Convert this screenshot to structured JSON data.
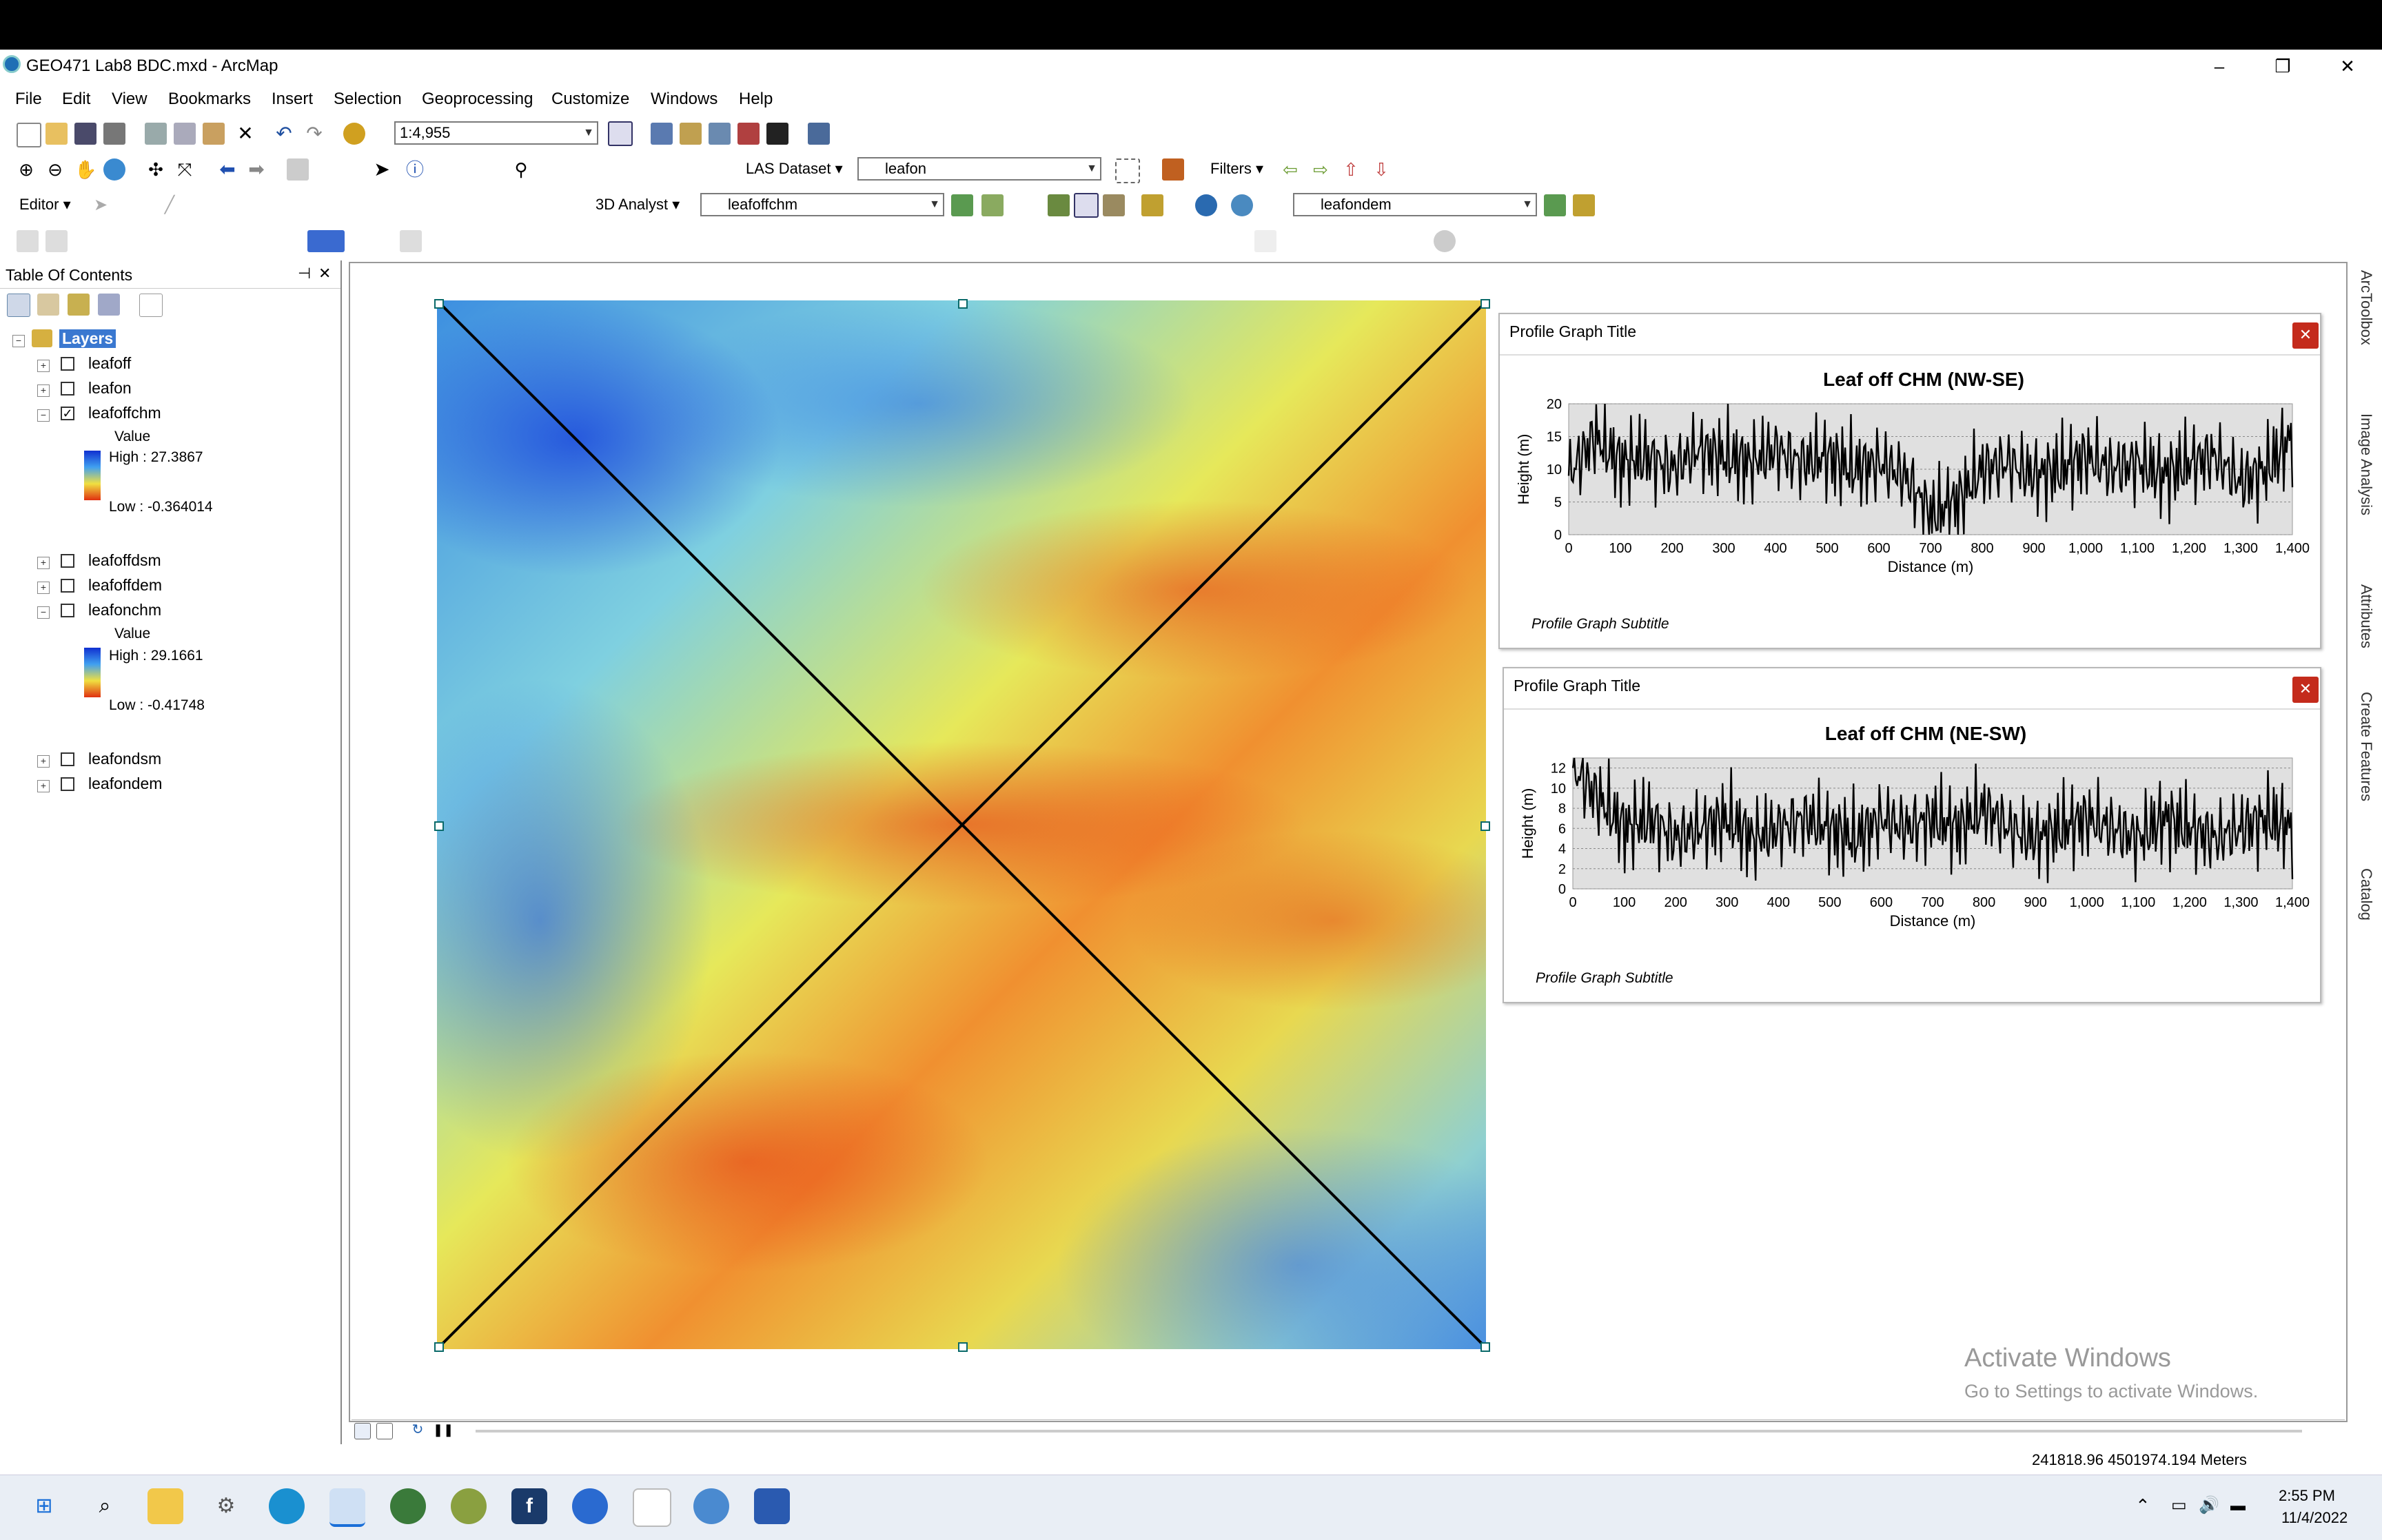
{
  "window": {
    "title": "GEO471 Lab8 BDC.mxd - ArcMap",
    "minimize": "–",
    "maximize": "❐",
    "close": "✕"
  },
  "menu": [
    "File",
    "Edit",
    "View",
    "Bookmarks",
    "Insert",
    "Selection",
    "Geoprocessing",
    "Customize",
    "Windows",
    "Help"
  ],
  "toolbar": {
    "scale": "1:4,955",
    "las_dataset_label": "LAS Dataset",
    "las_layer": "leafon",
    "filters_label": "Filters",
    "editor_label": "Editor",
    "analyst_label": "3D Analyst",
    "analyst_layer": "leafoffchm",
    "dem_layer": "leafondem"
  },
  "toc": {
    "header": "Table Of Contents",
    "pin": "⊣",
    "close": "✕",
    "root": "Layers",
    "layers": [
      {
        "name": "leafoff",
        "checked": false
      },
      {
        "name": "leafon",
        "checked": false
      },
      {
        "name": "leafoffchm",
        "checked": true,
        "legend_title": "Value",
        "high": "High : 27.3867",
        "low": "Low : -0.364014"
      },
      {
        "name": "leafoffdsm",
        "checked": false
      },
      {
        "name": "leafoffdem",
        "checked": false
      },
      {
        "name": "leafonchm",
        "checked": false,
        "legend_title": "Value",
        "high": "High : 29.1661",
        "low": "Low : -0.41748"
      },
      {
        "name": "leafondsm",
        "checked": false
      },
      {
        "name": "leafondem",
        "checked": false
      }
    ]
  },
  "graphs": [
    {
      "window_title": "Profile Graph Title",
      "subtitle": "Profile Graph Subtitle",
      "close": "✕",
      "chart_data": {
        "type": "line",
        "title": "Leaf off CHM (NW-SE)",
        "xlabel": "Distance (m)",
        "ylabel": "Height (m)",
        "xlim": [
          0,
          1400
        ],
        "ylim": [
          0,
          20
        ],
        "xticks": [
          "0",
          "100",
          "200",
          "300",
          "400",
          "500",
          "600",
          "700",
          "800",
          "900",
          "1,000",
          "1,100",
          "1,200",
          "1,300",
          "1,400"
        ],
        "yticks": [
          "0",
          "5",
          "10",
          "15",
          "20"
        ],
        "grid": true,
        "x": [
          0,
          50,
          100,
          150,
          200,
          250,
          300,
          350,
          400,
          450,
          500,
          550,
          600,
          650,
          700,
          750,
          800,
          850,
          900,
          950,
          1000,
          1050,
          1100,
          1150,
          1200,
          1250,
          1300,
          1350,
          1400
        ],
        "values": [
          9,
          15,
          11,
          12,
          10,
          13,
          12,
          11,
          13,
          11,
          12,
          10,
          11,
          9,
          3,
          5,
          10,
          11,
          9,
          10,
          12,
          10,
          11,
          9,
          11,
          12,
          8,
          10,
          15
        ]
      }
    },
    {
      "window_title": "Profile Graph Title",
      "subtitle": "Profile Graph Subtitle",
      "close": "✕",
      "chart_data": {
        "type": "line",
        "title": "Leaf off CHM (NE-SW)",
        "xlabel": "Distance (m)",
        "ylabel": "Height (m)",
        "xlim": [
          0,
          1400
        ],
        "ylim": [
          0,
          13
        ],
        "xticks": [
          "0",
          "100",
          "200",
          "300",
          "400",
          "500",
          "600",
          "700",
          "800",
          "900",
          "1,000",
          "1,100",
          "1,200",
          "1,300",
          "1,400"
        ],
        "yticks": [
          "0",
          "2",
          "4",
          "6",
          "8",
          "10",
          "12"
        ],
        "grid": true,
        "x": [
          0,
          50,
          100,
          150,
          200,
          250,
          300,
          350,
          400,
          450,
          500,
          550,
          600,
          650,
          700,
          750,
          800,
          850,
          900,
          950,
          1000,
          1050,
          1100,
          1150,
          1200,
          1250,
          1300,
          1350,
          1400
        ],
        "values": [
          12,
          9,
          6,
          7,
          5,
          6,
          7,
          5,
          6,
          7,
          6,
          5,
          7,
          6,
          7,
          6,
          8,
          6,
          5,
          6,
          7,
          6,
          5,
          7,
          6,
          5,
          6,
          7,
          6
        ]
      }
    }
  ],
  "map": {
    "watermark_title": "Activate Windows",
    "watermark_sub": "Go to Settings to activate Windows."
  },
  "status": {
    "coords": "241818.96  4501974.194 Meters"
  },
  "side_tabs": [
    "ArcToolbox",
    "Image Analysis",
    "Attributes",
    "Create Features",
    "Catalog"
  ],
  "taskbar": {
    "time": "2:55 PM",
    "date": "11/4/2022"
  },
  "colors": {
    "raster_high": "#1030d0",
    "raster_low": "#e03010",
    "close_red": "#c42b1c"
  }
}
